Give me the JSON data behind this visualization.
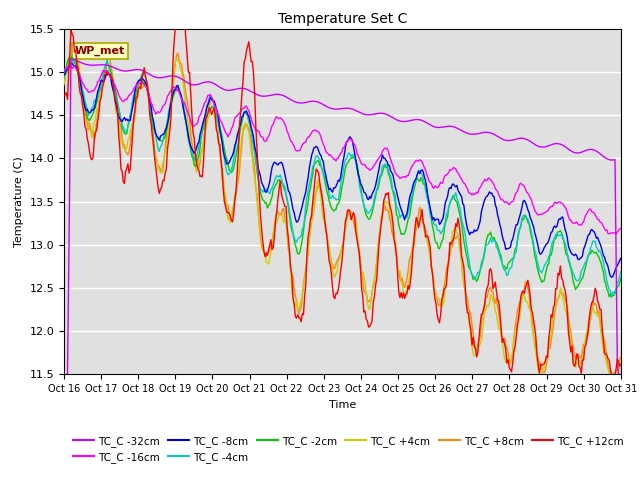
{
  "title": "Temperature Set C",
  "xlabel": "Time",
  "ylabel": "Temperature (C)",
  "ylim": [
    11.5,
    15.5
  ],
  "x_tick_labels": [
    "Oct 16",
    "Oct 17",
    "Oct 18",
    "Oct 19",
    "Oct 20",
    "Oct 21",
    "Oct 22",
    "Oct 23",
    "Oct 24",
    "Oct 25",
    "Oct 26",
    "Oct 27",
    "Oct 28",
    "Oct 29",
    "Oct 30",
    "Oct 31"
  ],
  "yticks": [
    11.5,
    12.0,
    12.5,
    13.0,
    13.5,
    14.0,
    14.5,
    15.0,
    15.5
  ],
  "annotation_text": "WP_met",
  "annotation_bg": "#FFFFC0",
  "annotation_border": "#AAAA00",
  "annotation_text_color": "#880000",
  "bg_color": "#E0E0E0",
  "series_colors": {
    "TC_C -32cm": "#CC00FF",
    "TC_C -16cm": "#FF00FF",
    "TC_C -8cm": "#0000EE",
    "TC_C -4cm": "#00CCCC",
    "TC_C -2cm": "#00CC00",
    "TC_C +4cm": "#CCCC00",
    "TC_C +8cm": "#FF8800",
    "TC_C +12cm": "#FF0000"
  },
  "legend_row1": [
    "TC_C -32cm",
    "TC_C -16cm",
    "TC_C -8cm",
    "TC_C -4cm",
    "TC_C -2cm",
    "TC_C +4cm"
  ],
  "legend_row2": [
    "TC_C +8cm",
    "TC_C +12cm"
  ]
}
